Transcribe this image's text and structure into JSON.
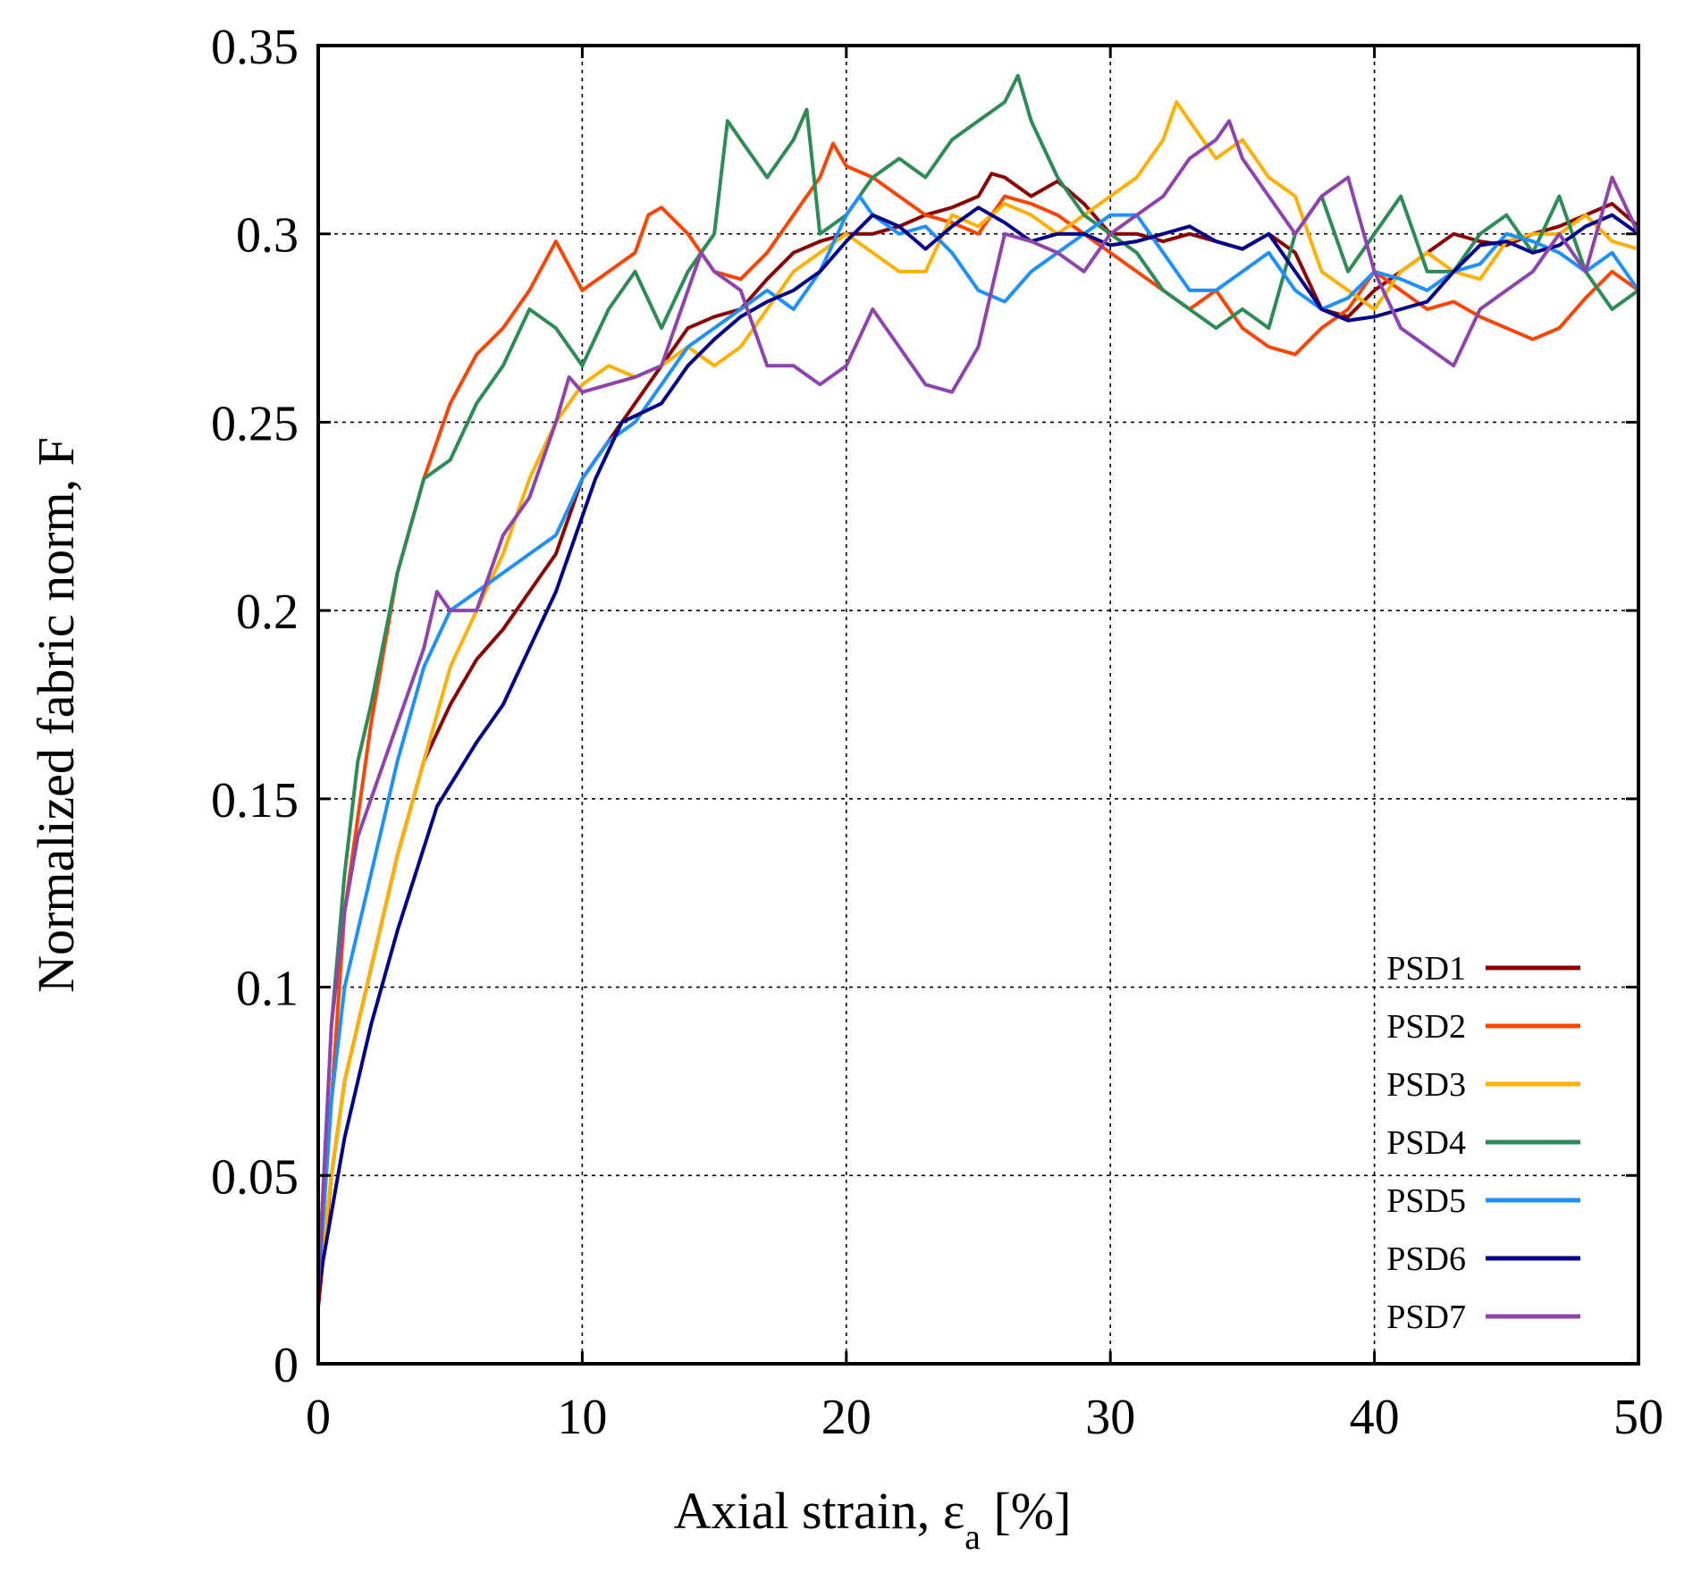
{
  "chart_data": {
    "type": "line",
    "title": "",
    "xlabel_main": "Axial strain, ",
    "xlabel_symbol": "ε",
    "xlabel_sub": "a",
    "xlabel_unit": " [%]",
    "ylabel": "Normalized fabric norm, F",
    "xlim": [
      0,
      50
    ],
    "ylim": [
      0,
      0.35
    ],
    "xticks": [
      0,
      10,
      20,
      30,
      40,
      50
    ],
    "xtick_labels": [
      "0",
      "10",
      "20",
      "30",
      "40",
      "50"
    ],
    "yticks": [
      0,
      0.05,
      0.1,
      0.15,
      0.2,
      0.25,
      0.3,
      0.35
    ],
    "ytick_labels": [
      "0",
      "0.05",
      "0.1",
      "0.15",
      "0.2",
      "0.25",
      "0.3",
      "0.35"
    ],
    "grid": true,
    "legend_position": "bottom-right",
    "series": [
      {
        "name": "PSD1",
        "color": "#8b0000",
        "x": [
          0,
          0.5,
          1,
          2,
          3,
          4,
          5,
          6,
          7,
          8,
          9,
          10,
          11,
          12,
          13,
          14,
          15,
          16,
          17,
          18,
          19,
          20,
          21,
          22,
          23,
          24,
          25,
          25.5,
          26,
          27,
          28,
          29,
          30,
          31,
          32,
          33,
          34,
          35,
          36,
          37,
          38,
          39,
          40,
          41,
          42,
          43,
          44,
          45,
          46,
          47,
          48,
          49,
          50
        ],
        "values": [
          0.015,
          0.05,
          0.075,
          0.105,
          0.135,
          0.16,
          0.175,
          0.187,
          0.195,
          0.205,
          0.215,
          0.235,
          0.245,
          0.255,
          0.265,
          0.275,
          0.278,
          0.28,
          0.288,
          0.295,
          0.298,
          0.3,
          0.3,
          0.302,
          0.305,
          0.307,
          0.31,
          0.316,
          0.315,
          0.31,
          0.314,
          0.308,
          0.3,
          0.3,
          0.298,
          0.3,
          0.298,
          0.296,
          0.3,
          0.295,
          0.28,
          0.278,
          0.285,
          0.29,
          0.295,
          0.3,
          0.298,
          0.297,
          0.3,
          0.302,
          0.305,
          0.308,
          0.302
        ]
      },
      {
        "name": "PSD2",
        "color": "#ff4500",
        "x": [
          0,
          0.5,
          1,
          2,
          3,
          4,
          5,
          6,
          7,
          8,
          9,
          10,
          11,
          12,
          12.5,
          13,
          14,
          15,
          16,
          17,
          18,
          19,
          19.5,
          20,
          21,
          22,
          23,
          24,
          25,
          26,
          27,
          28,
          29,
          30,
          31,
          32,
          33,
          34,
          35,
          36,
          37,
          38,
          39,
          40,
          41,
          42,
          43,
          44,
          45,
          46,
          47,
          48,
          49,
          50
        ],
        "values": [
          0.02,
          0.07,
          0.12,
          0.17,
          0.21,
          0.235,
          0.255,
          0.268,
          0.275,
          0.285,
          0.298,
          0.285,
          0.29,
          0.295,
          0.305,
          0.307,
          0.3,
          0.29,
          0.288,
          0.295,
          0.305,
          0.315,
          0.324,
          0.318,
          0.315,
          0.31,
          0.305,
          0.303,
          0.3,
          0.31,
          0.308,
          0.305,
          0.3,
          0.295,
          0.29,
          0.285,
          0.28,
          0.285,
          0.275,
          0.27,
          0.268,
          0.275,
          0.28,
          0.29,
          0.285,
          0.28,
          0.282,
          0.278,
          0.275,
          0.272,
          0.275,
          0.283,
          0.29,
          0.285
        ]
      },
      {
        "name": "PSD3",
        "color": "#ffb000",
        "x": [
          0,
          0.5,
          1,
          2,
          3,
          4,
          5,
          6,
          7,
          8,
          9,
          10,
          11,
          12,
          13,
          14,
          15,
          16,
          17,
          18,
          19,
          20,
          21,
          22,
          23,
          24,
          25,
          26,
          27,
          28,
          29,
          30,
          31,
          32,
          32.5,
          33,
          34,
          35,
          36,
          37,
          38,
          39,
          40,
          41,
          42,
          43,
          44,
          45,
          46,
          47,
          48,
          49,
          50
        ],
        "values": [
          0.02,
          0.05,
          0.075,
          0.105,
          0.135,
          0.16,
          0.185,
          0.2,
          0.215,
          0.235,
          0.25,
          0.26,
          0.265,
          0.262,
          0.265,
          0.27,
          0.265,
          0.27,
          0.28,
          0.29,
          0.295,
          0.3,
          0.295,
          0.29,
          0.29,
          0.305,
          0.302,
          0.308,
          0.305,
          0.3,
          0.305,
          0.31,
          0.315,
          0.325,
          0.335,
          0.33,
          0.32,
          0.325,
          0.315,
          0.31,
          0.29,
          0.285,
          0.28,
          0.29,
          0.295,
          0.29,
          0.288,
          0.298,
          0.3,
          0.3,
          0.305,
          0.298,
          0.296
        ]
      },
      {
        "name": "PSD4",
        "color": "#2e8b57",
        "x": [
          0,
          0.5,
          1,
          1.5,
          2,
          3,
          4,
          5,
          6,
          7,
          8,
          9,
          10,
          11,
          12,
          13,
          14,
          15,
          15.5,
          16,
          17,
          18,
          18.5,
          19,
          20,
          21,
          22,
          23,
          24,
          25,
          26,
          26.5,
          27,
          28,
          29,
          30,
          31,
          32,
          33,
          34,
          35,
          36,
          37,
          38,
          39,
          40,
          41,
          42,
          43,
          44,
          45,
          46,
          47,
          48,
          49,
          50
        ],
        "values": [
          0.02,
          0.09,
          0.13,
          0.16,
          0.175,
          0.21,
          0.235,
          0.24,
          0.255,
          0.265,
          0.28,
          0.275,
          0.265,
          0.28,
          0.29,
          0.275,
          0.29,
          0.3,
          0.33,
          0.325,
          0.315,
          0.325,
          0.333,
          0.3,
          0.305,
          0.315,
          0.32,
          0.315,
          0.325,
          0.33,
          0.335,
          0.342,
          0.33,
          0.315,
          0.305,
          0.3,
          0.295,
          0.285,
          0.28,
          0.275,
          0.28,
          0.275,
          0.3,
          0.31,
          0.29,
          0.3,
          0.31,
          0.29,
          0.29,
          0.3,
          0.305,
          0.295,
          0.31,
          0.29,
          0.28,
          0.285
        ]
      },
      {
        "name": "PSD5",
        "color": "#1e90ff",
        "x": [
          0,
          0.5,
          1,
          2,
          3,
          4,
          5,
          6,
          7,
          8,
          9,
          10,
          11,
          12,
          13,
          14,
          15,
          16,
          17,
          18,
          19,
          20,
          20.5,
          21,
          22,
          23,
          24,
          25,
          26,
          27,
          28,
          29,
          30,
          31,
          32,
          33,
          34,
          35,
          36,
          37,
          38,
          39,
          40,
          41,
          42,
          43,
          44,
          45,
          46,
          47,
          48,
          49,
          50
        ],
        "values": [
          0.02,
          0.07,
          0.1,
          0.13,
          0.16,
          0.185,
          0.2,
          0.205,
          0.21,
          0.215,
          0.22,
          0.235,
          0.245,
          0.25,
          0.26,
          0.27,
          0.275,
          0.28,
          0.285,
          0.28,
          0.29,
          0.305,
          0.31,
          0.305,
          0.3,
          0.302,
          0.295,
          0.285,
          0.282,
          0.29,
          0.295,
          0.3,
          0.305,
          0.305,
          0.295,
          0.285,
          0.285,
          0.29,
          0.295,
          0.285,
          0.28,
          0.283,
          0.29,
          0.288,
          0.285,
          0.29,
          0.292,
          0.3,
          0.298,
          0.295,
          0.29,
          0.295,
          0.285
        ]
      },
      {
        "name": "PSD6",
        "color": "#00008b",
        "x": [
          0,
          1,
          2,
          3,
          4.5,
          6,
          7,
          8,
          9,
          10.5,
          11.5,
          13,
          14,
          15,
          16,
          17,
          18,
          19,
          20,
          21,
          22,
          23,
          24,
          25,
          26,
          27,
          28,
          29,
          30,
          31,
          32,
          33,
          34,
          35,
          36,
          37,
          38,
          39,
          40,
          41,
          42,
          43,
          44,
          45,
          46,
          47,
          48,
          49,
          50
        ],
        "values": [
          0.02,
          0.06,
          0.09,
          0.115,
          0.148,
          0.165,
          0.175,
          0.19,
          0.205,
          0.235,
          0.25,
          0.255,
          0.265,
          0.272,
          0.278,
          0.282,
          0.285,
          0.29,
          0.298,
          0.305,
          0.302,
          0.296,
          0.302,
          0.307,
          0.303,
          0.298,
          0.3,
          0.3,
          0.297,
          0.298,
          0.3,
          0.302,
          0.298,
          0.296,
          0.3,
          0.29,
          0.28,
          0.277,
          0.278,
          0.28,
          0.282,
          0.29,
          0.297,
          0.298,
          0.295,
          0.297,
          0.302,
          0.305,
          0.3
        ]
      },
      {
        "name": "PSD7",
        "color": "#8e44ad",
        "x": [
          0,
          0.5,
          1,
          1.5,
          2,
          3,
          4,
          4.5,
          5,
          6,
          7,
          8,
          9,
          9.5,
          10,
          11,
          12,
          13,
          14,
          14.5,
          15,
          16,
          17,
          18,
          19,
          20,
          21,
          22,
          23,
          24,
          25,
          26,
          27,
          28,
          29,
          30,
          31,
          32,
          33,
          34,
          34.5,
          35,
          36,
          37,
          38,
          39,
          40,
          41,
          42,
          43,
          44,
          45,
          46,
          47,
          48,
          49,
          50
        ],
        "values": [
          0.02,
          0.09,
          0.12,
          0.14,
          0.15,
          0.17,
          0.19,
          0.205,
          0.2,
          0.2,
          0.22,
          0.23,
          0.25,
          0.262,
          0.258,
          0.26,
          0.262,
          0.265,
          0.285,
          0.295,
          0.29,
          0.285,
          0.265,
          0.265,
          0.26,
          0.265,
          0.28,
          0.27,
          0.26,
          0.258,
          0.27,
          0.3,
          0.298,
          0.295,
          0.29,
          0.3,
          0.305,
          0.31,
          0.32,
          0.325,
          0.33,
          0.32,
          0.31,
          0.3,
          0.31,
          0.315,
          0.29,
          0.275,
          0.27,
          0.265,
          0.28,
          0.285,
          0.29,
          0.3,
          0.29,
          0.315,
          0.3
        ]
      }
    ]
  }
}
